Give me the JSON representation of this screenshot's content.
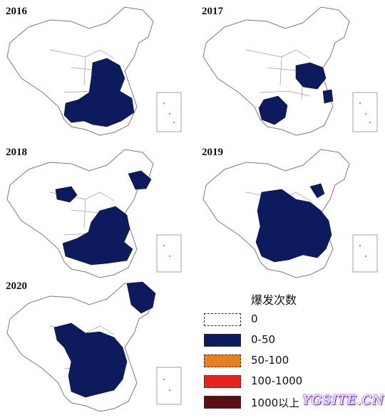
{
  "panels": [
    {
      "year": "2016"
    },
    {
      "year": "2017"
    },
    {
      "year": "2018"
    },
    {
      "year": "2019"
    },
    {
      "year": "2020"
    }
  ],
  "legend": {
    "title": "爆发次数",
    "items": [
      {
        "label": "0",
        "color": "#ffffff"
      },
      {
        "label": "0-50",
        "color": "#0d1b5e"
      },
      {
        "label": "50-100",
        "color": "#e8801f"
      },
      {
        "label": "100-1000",
        "color": "#e8231d"
      },
      {
        "label": "1000以上",
        "color": "#5a0f10"
      }
    ]
  },
  "watermark": "YGSITE.CN"
}
